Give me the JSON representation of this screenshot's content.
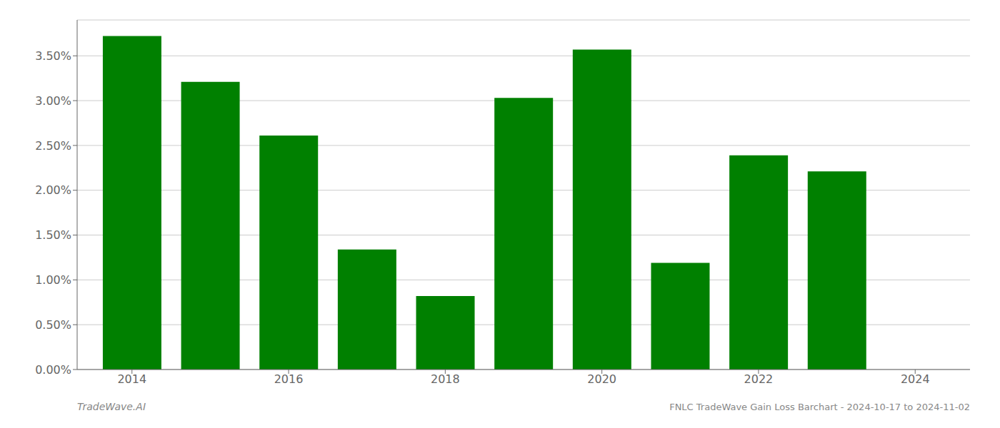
{
  "chart_data": {
    "type": "bar",
    "x": [
      2014,
      2015,
      2016,
      2017,
      2018,
      2019,
      2020,
      2021,
      2022,
      2023
    ],
    "values": [
      3.72,
      3.21,
      2.61,
      1.34,
      0.82,
      3.03,
      3.57,
      1.19,
      2.39,
      2.21
    ],
    "color": "#008000",
    "xlim": [
      2013.3,
      2024.7
    ],
    "xticks": [
      2014,
      2016,
      2018,
      2020,
      2022,
      2024
    ],
    "ylim": [
      0,
      3.9
    ],
    "yticks": [
      {
        "value": 0.0,
        "label": "0.00%"
      },
      {
        "value": 0.5,
        "label": "0.50%"
      },
      {
        "value": 1.0,
        "label": "1.00%"
      },
      {
        "value": 1.5,
        "label": "1.50%"
      },
      {
        "value": 2.0,
        "label": "2.00%"
      },
      {
        "value": 2.5,
        "label": "2.50%"
      },
      {
        "value": 3.0,
        "label": "3.00%"
      },
      {
        "value": 3.5,
        "label": "3.50%"
      }
    ],
    "grid": "y",
    "annotations": [
      "TradeWave.AI",
      "FNLC TradeWave Gain Loss Barchart - 2024-10-17 to 2024-11-02"
    ]
  }
}
